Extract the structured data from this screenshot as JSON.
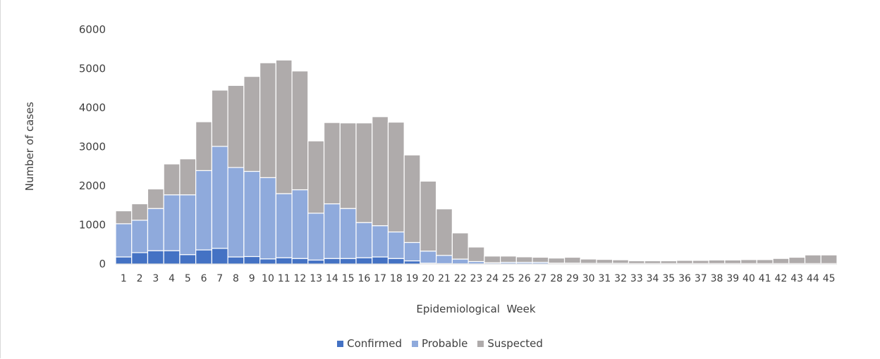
{
  "chart_data": {
    "type": "bar",
    "stacked": true,
    "xlabel": "Epidemiological  Week",
    "ylabel": "Number  of cases",
    "ylim": [
      0,
      6000
    ],
    "yticks": [
      0,
      1000,
      2000,
      3000,
      4000,
      5000,
      6000
    ],
    "grid": false,
    "legend_position": "bottom",
    "categories": [
      "1",
      "2",
      "3",
      "4",
      "5",
      "6",
      "7",
      "8",
      "9",
      "10",
      "11",
      "12",
      "13",
      "14",
      "15",
      "16",
      "17",
      "18",
      "19",
      "20",
      "21",
      "22",
      "23",
      "24",
      "25",
      "26",
      "27",
      "28",
      "29",
      "30",
      "31",
      "32",
      "33",
      "34",
      "35",
      "36",
      "37",
      "38",
      "39",
      "40",
      "41",
      "42",
      "43",
      "44",
      "45"
    ],
    "series": [
      {
        "name": "Confirmed",
        "color": "#4472c4",
        "values": [
          180,
          290,
          340,
          340,
          240,
          360,
          400,
          180,
          190,
          130,
          160,
          140,
          100,
          140,
          140,
          160,
          180,
          140,
          80,
          20,
          10,
          5,
          3,
          2,
          2,
          2,
          2,
          1,
          1,
          1,
          1,
          1,
          1,
          1,
          1,
          1,
          1,
          1,
          1,
          1,
          1,
          1,
          1,
          1,
          1
        ]
      },
      {
        "name": "Probable",
        "color": "#8faadc",
        "values": [
          850,
          830,
          1080,
          1430,
          1530,
          2030,
          2610,
          2290,
          2180,
          2080,
          1640,
          1760,
          1200,
          1400,
          1280,
          900,
          800,
          680,
          470,
          310,
          210,
          120,
          60,
          30,
          40,
          40,
          40,
          20,
          20,
          15,
          15,
          15,
          10,
          10,
          10,
          10,
          10,
          10,
          10,
          10,
          10,
          10,
          10,
          10,
          10
        ]
      },
      {
        "name": "Suspected",
        "color": "#afabab",
        "values": [
          330,
          420,
          500,
          790,
          920,
          1250,
          1440,
          2100,
          2430,
          2940,
          3420,
          3040,
          1850,
          2080,
          2190,
          2550,
          2790,
          2810,
          2240,
          1790,
          1190,
          670,
          370,
          170,
          160,
          140,
          130,
          130,
          150,
          110,
          100,
          90,
          70,
          70,
          70,
          80,
          80,
          90,
          90,
          100,
          100,
          130,
          160,
          220,
          220
        ]
      }
    ]
  }
}
